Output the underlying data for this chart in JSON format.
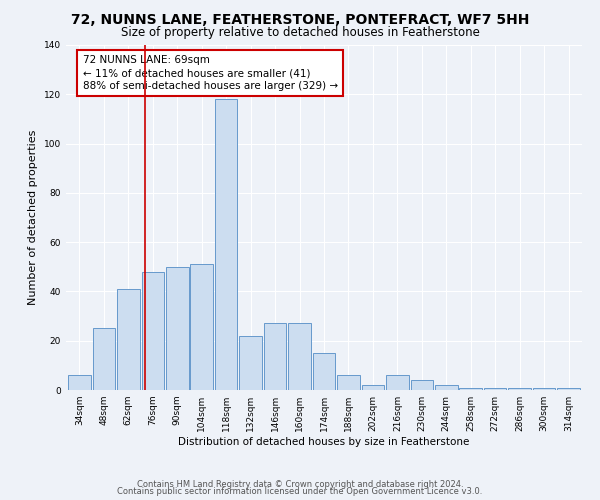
{
  "title": "72, NUNNS LANE, FEATHERSTONE, PONTEFRACT, WF7 5HH",
  "subtitle": "Size of property relative to detached houses in Featherstone",
  "xlabel": "Distribution of detached houses by size in Featherstone",
  "ylabel": "Number of detached properties",
  "bar_labels": [
    "34sqm",
    "48sqm",
    "62sqm",
    "76sqm",
    "90sqm",
    "104sqm",
    "118sqm",
    "132sqm",
    "146sqm",
    "160sqm",
    "174sqm",
    "188sqm",
    "202sqm",
    "216sqm",
    "230sqm",
    "244sqm",
    "258sqm",
    "272sqm",
    "286sqm",
    "300sqm",
    "314sqm"
  ],
  "bar_values": [
    6,
    25,
    41,
    48,
    50,
    51,
    118,
    22,
    27,
    27,
    15,
    6,
    2,
    6,
    4,
    2,
    1,
    1,
    1,
    1,
    1
  ],
  "bar_color": "#ccddf0",
  "bar_edge_color": "#6699cc",
  "ylim": [
    0,
    140
  ],
  "yticks": [
    0,
    20,
    40,
    60,
    80,
    100,
    120,
    140
  ],
  "red_line_x": 2.68,
  "annotation_text": "72 NUNNS LANE: 69sqm\n← 11% of detached houses are smaller (41)\n88% of semi-detached houses are larger (329) →",
  "annotation_box_color": "#ffffff",
  "annotation_box_edge_color": "#cc0000",
  "footer_line1": "Contains HM Land Registry data © Crown copyright and database right 2024.",
  "footer_line2": "Contains public sector information licensed under the Open Government Licence v3.0.",
  "background_color": "#eef2f8",
  "grid_color": "#ffffff",
  "title_fontsize": 10,
  "subtitle_fontsize": 8.5,
  "axis_label_fontsize": 7.5,
  "tick_fontsize": 6.5,
  "footer_fontsize": 6.0,
  "annotation_fontsize": 7.5,
  "ylabel_fontsize": 8
}
